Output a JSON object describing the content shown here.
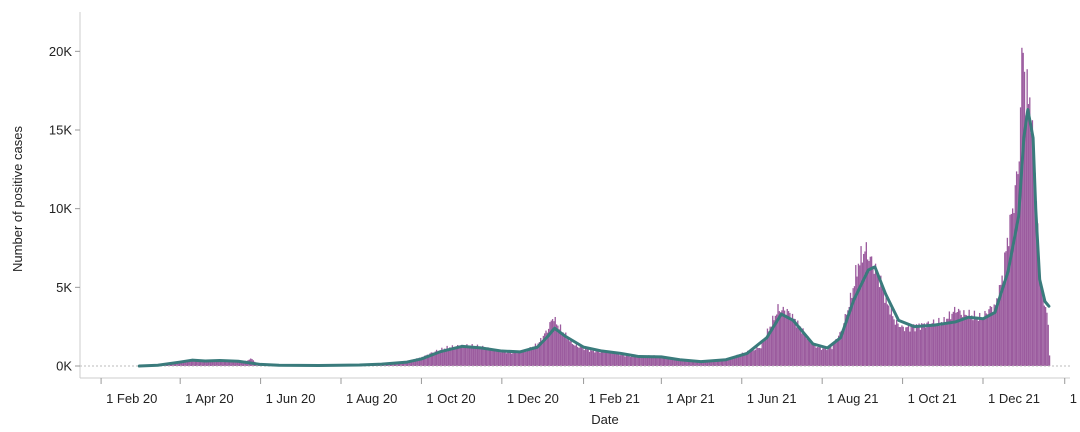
{
  "chart_data": {
    "type": "bar",
    "title": "",
    "xlabel": "Date",
    "ylabel": "Number of positive cases",
    "ylim": [
      0,
      22500
    ],
    "xlim": [
      "2020-01-16",
      "2022-02-05"
    ],
    "grid": false,
    "legend": "none",
    "bar_color": "#9b5b9e",
    "line_color": "#3a7b7c",
    "baseline_color": "#bbbbbb",
    "y_ticks": [
      {
        "value": 0,
        "label": "0K"
      },
      {
        "value": 5000,
        "label": "5K"
      },
      {
        "value": 10000,
        "label": "10K"
      },
      {
        "value": 15000,
        "label": "15K"
      },
      {
        "value": 20000,
        "label": "20K"
      }
    ],
    "x_ticks": [
      {
        "date": "2020-02-01",
        "label": "1 Feb 20"
      },
      {
        "date": "2020-04-01",
        "label": "1 Apr 20"
      },
      {
        "date": "2020-06-01",
        "label": "1 Jun 20"
      },
      {
        "date": "2020-08-01",
        "label": "1 Aug 20"
      },
      {
        "date": "2020-10-01",
        "label": "1 Oct 20"
      },
      {
        "date": "2020-12-01",
        "label": "1 Dec 20"
      },
      {
        "date": "2021-02-01",
        "label": "1 Feb 21"
      },
      {
        "date": "2021-04-01",
        "label": "1 Apr 21"
      },
      {
        "date": "2021-06-01",
        "label": "1 Jun 21"
      },
      {
        "date": "2021-08-01",
        "label": "1 Aug 21"
      },
      {
        "date": "2021-10-01",
        "label": "1 Oct 21"
      },
      {
        "date": "2021-12-01",
        "label": "1 Dec 21"
      },
      {
        "date": "2022-02-01",
        "label": "1 Feb"
      }
    ],
    "daily_cases": [
      [
        "2020-03-01",
        0
      ],
      [
        "2020-03-10",
        30
      ],
      [
        "2020-03-20",
        150
      ],
      [
        "2020-04-01",
        300
      ],
      [
        "2020-04-10",
        380
      ],
      [
        "2020-04-20",
        350
      ],
      [
        "2020-05-01",
        360
      ],
      [
        "2020-05-10",
        330
      ],
      [
        "2020-05-20",
        300
      ],
      [
        "2020-05-25",
        480
      ],
      [
        "2020-05-28",
        150
      ],
      [
        "2020-06-05",
        80
      ],
      [
        "2020-06-20",
        40
      ],
      [
        "2020-07-10",
        30
      ],
      [
        "2020-08-01",
        40
      ],
      [
        "2020-08-20",
        80
      ],
      [
        "2020-09-05",
        150
      ],
      [
        "2020-09-20",
        300
      ],
      [
        "2020-10-01",
        550
      ],
      [
        "2020-10-10",
        900
      ],
      [
        "2020-10-20",
        1150
      ],
      [
        "2020-11-01",
        1300
      ],
      [
        "2020-11-10",
        1250
      ],
      [
        "2020-11-20",
        1100
      ],
      [
        "2020-12-01",
        950
      ],
      [
        "2020-12-10",
        850
      ],
      [
        "2020-12-20",
        1000
      ],
      [
        "2020-12-28",
        1400
      ],
      [
        "2021-01-05",
        2400
      ],
      [
        "2021-01-08",
        3100
      ],
      [
        "2021-01-12",
        2600
      ],
      [
        "2021-01-18",
        1900
      ],
      [
        "2021-01-25",
        1300
      ],
      [
        "2021-02-05",
        1000
      ],
      [
        "2021-02-15",
        900
      ],
      [
        "2021-02-25",
        850
      ],
      [
        "2021-03-05",
        650
      ],
      [
        "2021-03-15",
        600
      ],
      [
        "2021-03-25",
        620
      ],
      [
        "2021-04-05",
        550
      ],
      [
        "2021-04-15",
        400
      ],
      [
        "2021-04-25",
        300
      ],
      [
        "2021-05-05",
        280
      ],
      [
        "2021-05-15",
        350
      ],
      [
        "2021-05-25",
        550
      ],
      [
        "2021-06-05",
        900
      ],
      [
        "2021-06-15",
        1200
      ],
      [
        "2021-06-22",
        2500
      ],
      [
        "2021-06-28",
        3600
      ],
      [
        "2021-07-05",
        3500
      ],
      [
        "2021-07-10",
        3000
      ],
      [
        "2021-07-18",
        2100
      ],
      [
        "2021-07-25",
        1300
      ],
      [
        "2021-08-01",
        1100
      ],
      [
        "2021-08-08",
        1200
      ],
      [
        "2021-08-15",
        2200
      ],
      [
        "2021-08-22",
        4200
      ],
      [
        "2021-08-28",
        6500
      ],
      [
        "2021-09-02",
        7400
      ],
      [
        "2021-09-06",
        6800
      ],
      [
        "2021-09-12",
        5800
      ],
      [
        "2021-09-18",
        4200
      ],
      [
        "2021-09-25",
        2800
      ],
      [
        "2021-10-01",
        2400
      ],
      [
        "2021-10-10",
        2500
      ],
      [
        "2021-10-20",
        2700
      ],
      [
        "2021-11-01",
        2800
      ],
      [
        "2021-11-10",
        3600
      ],
      [
        "2021-11-15",
        3300
      ],
      [
        "2021-11-22",
        3200
      ],
      [
        "2021-11-30",
        3000
      ],
      [
        "2021-12-05",
        3600
      ],
      [
        "2021-12-10",
        3800
      ],
      [
        "2021-12-15",
        5500
      ],
      [
        "2021-12-20",
        8500
      ],
      [
        "2021-12-25",
        11000
      ],
      [
        "2021-12-28",
        13500
      ],
      [
        "2021-12-31",
        21500
      ],
      [
        "2022-01-02",
        16000
      ],
      [
        "2022-01-04",
        18500
      ],
      [
        "2022-01-06",
        15000
      ],
      [
        "2022-01-08",
        13500
      ],
      [
        "2022-01-10",
        10500
      ],
      [
        "2022-01-12",
        6300
      ],
      [
        "2022-01-14",
        4800
      ],
      [
        "2022-01-17",
        3800
      ],
      [
        "2022-01-19",
        2600
      ],
      [
        "2022-01-20",
        700
      ]
    ],
    "moving_average": [
      [
        "2020-03-01",
        0
      ],
      [
        "2020-03-15",
        50
      ],
      [
        "2020-04-01",
        250
      ],
      [
        "2020-04-10",
        370
      ],
      [
        "2020-04-20",
        320
      ],
      [
        "2020-05-01",
        350
      ],
      [
        "2020-05-15",
        300
      ],
      [
        "2020-06-01",
        100
      ],
      [
        "2020-06-15",
        50
      ],
      [
        "2020-07-15",
        30
      ],
      [
        "2020-08-15",
        60
      ],
      [
        "2020-09-01",
        120
      ],
      [
        "2020-09-20",
        250
      ],
      [
        "2020-10-01",
        450
      ],
      [
        "2020-10-15",
        900
      ],
      [
        "2020-11-01",
        1250
      ],
      [
        "2020-11-15",
        1150
      ],
      [
        "2020-12-01",
        950
      ],
      [
        "2020-12-15",
        900
      ],
      [
        "2020-12-28",
        1200
      ],
      [
        "2021-01-05",
        1900
      ],
      [
        "2021-01-10",
        2400
      ],
      [
        "2021-01-18",
        1900
      ],
      [
        "2021-02-01",
        1200
      ],
      [
        "2021-02-15",
        950
      ],
      [
        "2021-03-01",
        800
      ],
      [
        "2021-03-15",
        600
      ],
      [
        "2021-04-01",
        580
      ],
      [
        "2021-04-15",
        400
      ],
      [
        "2021-05-01",
        280
      ],
      [
        "2021-05-20",
        400
      ],
      [
        "2021-06-05",
        800
      ],
      [
        "2021-06-20",
        1800
      ],
      [
        "2021-07-01",
        3300
      ],
      [
        "2021-07-10",
        2900
      ],
      [
        "2021-07-25",
        1400
      ],
      [
        "2021-08-05",
        1150
      ],
      [
        "2021-08-15",
        1800
      ],
      [
        "2021-08-25",
        4200
      ],
      [
        "2021-09-05",
        6100
      ],
      [
        "2021-09-10",
        6300
      ],
      [
        "2021-09-18",
        4600
      ],
      [
        "2021-09-28",
        2900
      ],
      [
        "2021-10-10",
        2500
      ],
      [
        "2021-10-25",
        2600
      ],
      [
        "2021-11-10",
        2800
      ],
      [
        "2021-11-20",
        3100
      ],
      [
        "2021-12-01",
        3000
      ],
      [
        "2021-12-10",
        3400
      ],
      [
        "2021-12-20",
        6000
      ],
      [
        "2021-12-28",
        9500
      ],
      [
        "2022-01-01",
        14500
      ],
      [
        "2022-01-04",
        16300
      ],
      [
        "2022-01-08",
        14500
      ],
      [
        "2022-01-10",
        10000
      ],
      [
        "2022-01-13",
        5500
      ],
      [
        "2022-01-17",
        4100
      ],
      [
        "2022-01-20",
        3800
      ]
    ]
  }
}
